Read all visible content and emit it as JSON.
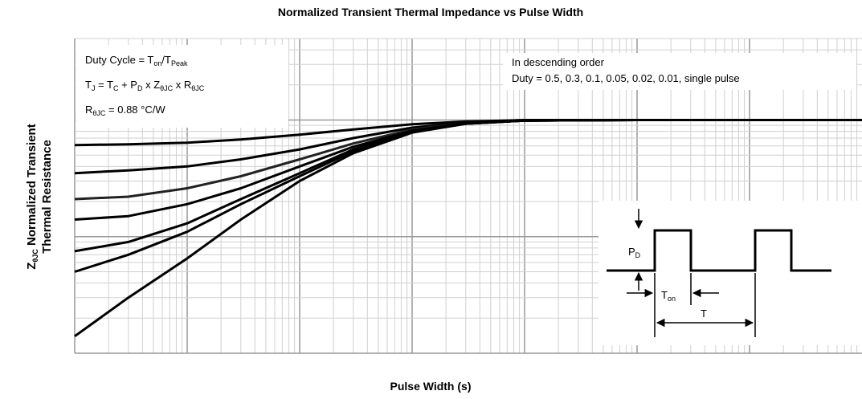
{
  "chart_data": {
    "type": "line",
    "title": "Normalized Transient Thermal Impedance vs Pulse Width",
    "x_label": "Pulse Width (s)",
    "y_label": [
      [
        "Z",
        "θJC",
        " Normalized Transient"
      ],
      [
        "Thermal Resistance"
      ]
    ],
    "x_scale": "log",
    "y_scale": "log",
    "grid": true,
    "xlim": [
      1e-06,
      10
    ],
    "ylim": [
      0.01,
      5
    ],
    "x": [
      1e-06,
      3e-06,
      1e-05,
      3e-05,
      0.0001,
      0.0003,
      0.001,
      0.003,
      0.01,
      0.1,
      1,
      10
    ],
    "series": [
      {
        "color": "#000000",
        "values": [
          0.61,
          0.62,
          0.64,
          0.68,
          0.75,
          0.83,
          0.92,
          0.97,
          1,
          1,
          1,
          1
        ]
      },
      {
        "color": "#000000",
        "values": [
          0.35,
          0.37,
          0.4,
          0.46,
          0.56,
          0.7,
          0.86,
          0.95,
          1,
          1,
          1,
          1
        ]
      },
      {
        "color": "#222222",
        "values": [
          0.21,
          0.22,
          0.26,
          0.33,
          0.46,
          0.63,
          0.83,
          0.94,
          0.99,
          1,
          1,
          1
        ]
      },
      {
        "color": "#000000",
        "values": [
          0.14,
          0.15,
          0.19,
          0.26,
          0.4,
          0.59,
          0.81,
          0.94,
          0.99,
          1,
          1,
          1
        ]
      },
      {
        "color": "#000000",
        "values": [
          0.075,
          0.09,
          0.13,
          0.21,
          0.35,
          0.56,
          0.8,
          0.93,
          0.99,
          1,
          1,
          1
        ]
      },
      {
        "color": "#000000",
        "values": [
          0.05,
          0.07,
          0.11,
          0.19,
          0.33,
          0.54,
          0.79,
          0.93,
          0.99,
          1,
          1,
          1
        ]
      },
      {
        "color": "#000000",
        "values": [
          0.014,
          0.03,
          0.065,
          0.14,
          0.3,
          0.52,
          0.78,
          0.93,
          0.99,
          1,
          1,
          1
        ]
      }
    ],
    "annotations": [
      [
        "Duty Cycle = T",
        "on",
        "/T",
        "Peak"
      ],
      [
        "T",
        "J",
        " = T",
        "C",
        " + P",
        "D",
        " x Z",
        "θJC",
        " x R",
        "θJC"
      ],
      [
        "R",
        "θJC",
        " = 0.88 °C/W"
      ]
    ],
    "legend_text": [
      "In descending order",
      "Duty = 0.5, 0.3, 0.1, 0.05, 0.02, 0.01, single pulse"
    ],
    "inset_labels": [
      [
        "P",
        "D"
      ],
      [
        "T",
        "on"
      ],
      [
        "T"
      ]
    ]
  }
}
